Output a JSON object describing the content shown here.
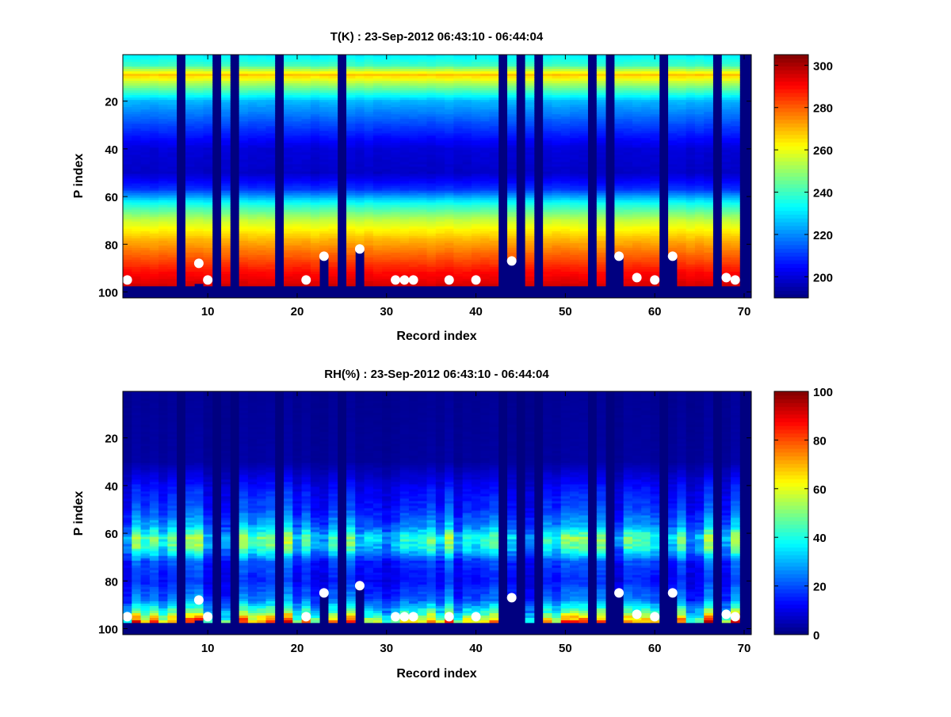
{
  "chart_data": [
    {
      "type": "heatmap",
      "title": "T(K) : 23-Sep-2012 06:43:10 - 06:44:04",
      "xlabel": "Record index",
      "ylabel": "P index",
      "xlim": [
        0.5,
        70.8
      ],
      "ylim": [
        0.5,
        102.5
      ],
      "xticks": [
        10,
        20,
        30,
        40,
        50,
        60,
        70
      ],
      "yticks": [
        20,
        40,
        60,
        80,
        100
      ],
      "clim": [
        190,
        305
      ],
      "colorbar_ticks": [
        200,
        220,
        240,
        260,
        280,
        300
      ],
      "colormap": "jet",
      "profile_levels": [
        1,
        5,
        9,
        12,
        20,
        30,
        40,
        50,
        57,
        63,
        70,
        78,
        85,
        92,
        97
      ],
      "profile_values": [
        232,
        240,
        268,
        255,
        225,
        212,
        200,
        198,
        210,
        235,
        255,
        270,
        280,
        290,
        295
      ],
      "noise": 3
    },
    {
      "type": "heatmap",
      "title": "RH(%) : 23-Sep-2012 06:43:10 - 06:44:04",
      "xlabel": "Record index",
      "ylabel": "P index",
      "xlim": [
        0.5,
        70.8
      ],
      "ylim": [
        0.5,
        102.5
      ],
      "xticks": [
        10,
        20,
        30,
        40,
        50,
        60,
        70
      ],
      "yticks": [
        20,
        40,
        60,
        80,
        100
      ],
      "clim": [
        0,
        100
      ],
      "colorbar_ticks": [
        0,
        20,
        40,
        60,
        80,
        100
      ],
      "colormap": "jet",
      "profile_levels": [
        1,
        30,
        36,
        42,
        50,
        57,
        62,
        66,
        72,
        80,
        88,
        93,
        97
      ],
      "profile_values": [
        2,
        3,
        8,
        13,
        17,
        26,
        42,
        38,
        18,
        14,
        22,
        40,
        65
      ],
      "noise": 10
    }
  ],
  "shared": {
    "records": 70,
    "levels": 101,
    "valid_bottom_level": 97,
    "missing_records": [
      7,
      11,
      13,
      18,
      25,
      43,
      45,
      47,
      53,
      55,
      61,
      67,
      70
    ],
    "partial_records": [
      {
        "record": 9,
        "last_level": 96
      },
      {
        "record": 23,
        "last_level": 84
      },
      {
        "record": 27,
        "last_level": 81
      },
      {
        "record": 44,
        "last_level": 86
      },
      {
        "record": 56,
        "last_level": 84
      },
      {
        "record": 62,
        "last_level": 84
      }
    ],
    "markers": [
      {
        "record": 1,
        "level": 95
      },
      {
        "record": 9,
        "level": 88
      },
      {
        "record": 10,
        "level": 95
      },
      {
        "record": 21,
        "level": 95
      },
      {
        "record": 23,
        "level": 85
      },
      {
        "record": 27,
        "level": 82
      },
      {
        "record": 31,
        "level": 95
      },
      {
        "record": 32,
        "level": 95
      },
      {
        "record": 33,
        "level": 95
      },
      {
        "record": 37,
        "level": 95
      },
      {
        "record": 40,
        "level": 95
      },
      {
        "record": 44,
        "level": 87
      },
      {
        "record": 56,
        "level": 85
      },
      {
        "record": 58,
        "level": 94
      },
      {
        "record": 60,
        "level": 95
      },
      {
        "record": 62,
        "level": 85
      },
      {
        "record": 68,
        "level": 94
      },
      {
        "record": 69,
        "level": 95
      }
    ],
    "missing_color": "#000080",
    "marker_color": "#ffffff"
  }
}
